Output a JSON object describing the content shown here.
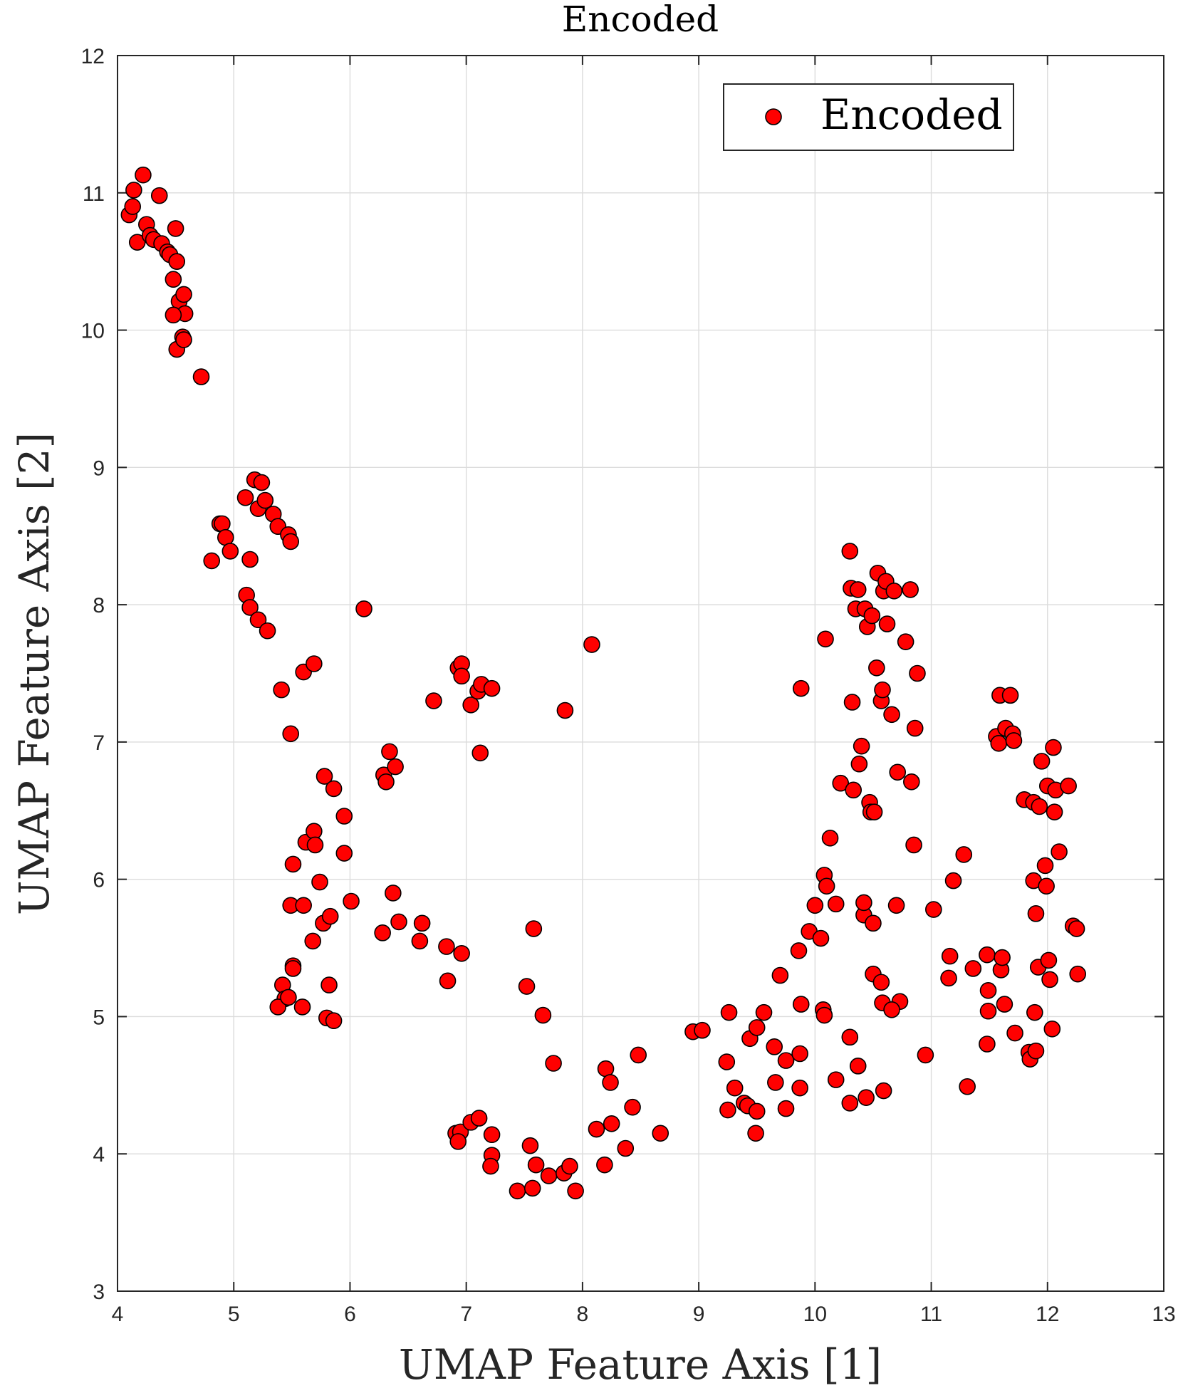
{
  "chart_data": {
    "type": "scatter",
    "title": "Encoded",
    "xlabel": "UMAP Feature Axis [1]",
    "ylabel": "UMAP Feature Axis [2]",
    "xlim": [
      4,
      13
    ],
    "ylim": [
      3,
      12
    ],
    "xticks": [
      "4",
      "5",
      "6",
      "7",
      "8",
      "9",
      "10",
      "11",
      "12",
      "13"
    ],
    "yticks": [
      "3",
      "4",
      "5",
      "6",
      "7",
      "8",
      "9",
      "10",
      "11",
      "12"
    ],
    "grid": true,
    "legend_position": "top-right",
    "series": [
      {
        "name": "Encoded",
        "color": "#ff0000",
        "points": [
          [
            4.1,
            10.84
          ],
          [
            4.13,
            10.9
          ],
          [
            4.14,
            11.02
          ],
          [
            4.17,
            10.64
          ],
          [
            4.22,
            11.13
          ],
          [
            4.25,
            10.77
          ],
          [
            4.28,
            10.69
          ],
          [
            4.31,
            10.66
          ],
          [
            4.36,
            10.98
          ],
          [
            4.38,
            10.63
          ],
          [
            4.43,
            10.57
          ],
          [
            4.45,
            10.55
          ],
          [
            4.48,
            10.37
          ],
          [
            4.5,
            10.74
          ],
          [
            4.51,
            10.5
          ],
          [
            4.53,
            10.21
          ],
          [
            4.56,
            9.95
          ],
          [
            4.57,
            10.26
          ],
          [
            4.58,
            10.12
          ],
          [
            4.48,
            10.11
          ],
          [
            4.51,
            9.86
          ],
          [
            4.57,
            9.93
          ],
          [
            4.72,
            9.66
          ],
          [
            4.81,
            8.32
          ],
          [
            4.88,
            8.59
          ],
          [
            4.9,
            8.59
          ],
          [
            4.93,
            8.49
          ],
          [
            4.97,
            8.39
          ],
          [
            5.1,
            8.78
          ],
          [
            5.14,
            8.33
          ],
          [
            5.18,
            8.91
          ],
          [
            5.21,
            8.7
          ],
          [
            5.24,
            8.89
          ],
          [
            5.27,
            8.76
          ],
          [
            5.34,
            8.66
          ],
          [
            5.38,
            8.57
          ],
          [
            5.47,
            8.51
          ],
          [
            5.49,
            8.46
          ],
          [
            5.11,
            8.07
          ],
          [
            5.14,
            7.98
          ],
          [
            5.21,
            7.89
          ],
          [
            5.29,
            7.81
          ],
          [
            5.41,
            7.38
          ],
          [
            5.6,
            7.51
          ],
          [
            5.69,
            7.57
          ],
          [
            5.49,
            7.06
          ],
          [
            6.12,
            7.97
          ],
          [
            5.78,
            6.75
          ],
          [
            5.86,
            6.66
          ],
          [
            5.95,
            6.46
          ],
          [
            5.62,
            6.27
          ],
          [
            5.69,
            6.35
          ],
          [
            5.7,
            6.25
          ],
          [
            5.51,
            6.11
          ],
          [
            5.95,
            6.19
          ],
          [
            5.74,
            5.98
          ],
          [
            5.49,
            5.81
          ],
          [
            5.6,
            5.81
          ],
          [
            5.77,
            5.68
          ],
          [
            5.83,
            5.73
          ],
          [
            6.01,
            5.84
          ],
          [
            5.68,
            5.55
          ],
          [
            5.51,
            5.37
          ],
          [
            5.51,
            5.35
          ],
          [
            5.42,
            5.23
          ],
          [
            5.44,
            5.13
          ],
          [
            5.38,
            5.07
          ],
          [
            5.47,
            5.14
          ],
          [
            5.59,
            5.07
          ],
          [
            5.82,
            5.23
          ],
          [
            5.8,
            4.99
          ],
          [
            5.86,
            4.97
          ],
          [
            6.29,
            6.76
          ],
          [
            6.31,
            6.71
          ],
          [
            6.34,
            6.93
          ],
          [
            6.39,
            6.82
          ],
          [
            6.37,
            5.9
          ],
          [
            6.42,
            5.69
          ],
          [
            6.28,
            5.61
          ],
          [
            6.6,
            5.55
          ],
          [
            6.62,
            5.68
          ],
          [
            6.72,
            7.3
          ],
          [
            6.93,
            7.54
          ],
          [
            6.96,
            7.57
          ],
          [
            6.96,
            7.48
          ],
          [
            7.04,
            7.27
          ],
          [
            7.1,
            7.37
          ],
          [
            7.13,
            7.42
          ],
          [
            7.22,
            7.39
          ],
          [
            7.12,
            6.92
          ],
          [
            6.83,
            5.51
          ],
          [
            6.96,
            5.46
          ],
          [
            6.84,
            5.26
          ],
          [
            6.91,
            4.15
          ],
          [
            6.95,
            4.16
          ],
          [
            6.93,
            4.09
          ],
          [
            7.04,
            4.23
          ],
          [
            7.11,
            4.26
          ],
          [
            7.22,
            4.14
          ],
          [
            7.22,
            3.99
          ],
          [
            7.21,
            3.91
          ],
          [
            7.44,
            3.73
          ],
          [
            7.55,
            4.06
          ],
          [
            7.57,
            3.75
          ],
          [
            7.6,
            3.92
          ],
          [
            7.71,
            3.84
          ],
          [
            7.84,
            3.86
          ],
          [
            7.89,
            3.91
          ],
          [
            7.94,
            3.73
          ],
          [
            7.52,
            5.22
          ],
          [
            7.58,
            5.64
          ],
          [
            7.66,
            5.01
          ],
          [
            7.75,
            4.66
          ],
          [
            7.85,
            7.23
          ],
          [
            8.08,
            7.71
          ],
          [
            8.12,
            4.18
          ],
          [
            8.2,
            4.62
          ],
          [
            8.24,
            4.52
          ],
          [
            8.25,
            4.22
          ],
          [
            8.19,
            3.92
          ],
          [
            8.37,
            4.04
          ],
          [
            8.43,
            4.34
          ],
          [
            8.48,
            4.72
          ],
          [
            8.67,
            4.15
          ],
          [
            8.95,
            4.89
          ],
          [
            9.03,
            4.9
          ],
          [
            9.24,
            4.67
          ],
          [
            9.26,
            5.03
          ],
          [
            9.25,
            4.32
          ],
          [
            9.31,
            4.48
          ],
          [
            9.39,
            4.37
          ],
          [
            9.42,
            4.35
          ],
          [
            9.44,
            4.84
          ],
          [
            9.5,
            4.92
          ],
          [
            9.5,
            4.31
          ],
          [
            9.49,
            4.15
          ],
          [
            9.56,
            5.03
          ],
          [
            9.65,
            4.78
          ],
          [
            9.66,
            4.52
          ],
          [
            9.7,
            5.3
          ],
          [
            9.75,
            4.68
          ],
          [
            9.75,
            4.33
          ],
          [
            9.86,
            5.48
          ],
          [
            9.88,
            5.09
          ],
          [
            9.87,
            4.73
          ],
          [
            9.87,
            4.48
          ],
          [
            9.88,
            7.39
          ],
          [
            9.95,
            5.62
          ],
          [
            10.0,
            5.81
          ],
          [
            10.05,
            5.57
          ],
          [
            10.07,
            5.05
          ],
          [
            10.08,
            5.01
          ],
          [
            10.08,
            6.03
          ],
          [
            10.1,
            5.95
          ],
          [
            10.13,
            6.3
          ],
          [
            10.09,
            7.75
          ],
          [
            10.18,
            5.82
          ],
          [
            10.18,
            4.54
          ],
          [
            10.22,
            6.7
          ],
          [
            10.3,
            8.39
          ],
          [
            10.31,
            8.12
          ],
          [
            10.32,
            7.29
          ],
          [
            10.33,
            6.65
          ],
          [
            10.35,
            7.97
          ],
          [
            10.37,
            8.11
          ],
          [
            10.38,
            6.84
          ],
          [
            10.4,
            6.97
          ],
          [
            10.42,
            5.74
          ],
          [
            10.42,
            5.83
          ],
          [
            10.43,
            7.97
          ],
          [
            10.45,
            7.84
          ],
          [
            10.47,
            6.56
          ],
          [
            10.48,
            6.49
          ],
          [
            10.49,
            7.92
          ],
          [
            10.51,
            6.49
          ],
          [
            10.53,
            7.54
          ],
          [
            10.54,
            8.23
          ],
          [
            10.57,
            7.3
          ],
          [
            10.58,
            7.38
          ],
          [
            10.59,
            8.1
          ],
          [
            10.61,
            8.17
          ],
          [
            10.62,
            7.86
          ],
          [
            10.66,
            7.2
          ],
          [
            10.68,
            8.1
          ],
          [
            10.7,
            5.81
          ],
          [
            10.71,
            6.78
          ],
          [
            10.73,
            5.11
          ],
          [
            10.78,
            7.73
          ],
          [
            10.82,
            8.11
          ],
          [
            10.83,
            6.71
          ],
          [
            10.85,
            6.25
          ],
          [
            10.86,
            7.1
          ],
          [
            10.88,
            7.5
          ],
          [
            10.3,
            4.85
          ],
          [
            10.37,
            4.64
          ],
          [
            10.3,
            4.37
          ],
          [
            10.44,
            4.41
          ],
          [
            10.5,
            5.68
          ],
          [
            10.5,
            5.31
          ],
          [
            10.57,
            5.25
          ],
          [
            10.58,
            5.1
          ],
          [
            10.66,
            5.05
          ],
          [
            10.59,
            4.46
          ],
          [
            10.95,
            4.72
          ],
          [
            11.02,
            5.78
          ],
          [
            11.15,
            5.28
          ],
          [
            11.16,
            5.44
          ],
          [
            11.19,
            5.99
          ],
          [
            11.28,
            6.18
          ],
          [
            11.31,
            4.49
          ],
          [
            11.36,
            5.35
          ],
          [
            11.48,
            5.45
          ],
          [
            11.49,
            5.19
          ],
          [
            11.49,
            5.04
          ],
          [
            11.48,
            4.8
          ],
          [
            11.56,
            7.04
          ],
          [
            11.58,
            6.99
          ],
          [
            11.59,
            7.34
          ],
          [
            11.6,
            5.34
          ],
          [
            11.61,
            5.43
          ],
          [
            11.63,
            5.09
          ],
          [
            11.64,
            7.1
          ],
          [
            11.68,
            7.34
          ],
          [
            11.7,
            7.06
          ],
          [
            11.71,
            7.01
          ],
          [
            11.72,
            4.88
          ],
          [
            11.8,
            6.58
          ],
          [
            11.84,
            4.74
          ],
          [
            11.85,
            4.69
          ],
          [
            11.88,
            5.99
          ],
          [
            11.88,
            6.56
          ],
          [
            11.89,
            5.03
          ],
          [
            11.9,
            4.75
          ],
          [
            11.9,
            5.75
          ],
          [
            11.92,
            5.36
          ],
          [
            11.93,
            6.53
          ],
          [
            11.95,
            6.86
          ],
          [
            11.98,
            6.1
          ],
          [
            11.99,
            5.95
          ],
          [
            12.0,
            6.68
          ],
          [
            12.01,
            5.41
          ],
          [
            12.02,
            5.27
          ],
          [
            12.04,
            4.91
          ],
          [
            12.05,
            6.96
          ],
          [
            12.06,
            6.49
          ],
          [
            12.07,
            6.65
          ],
          [
            12.1,
            6.2
          ],
          [
            12.18,
            6.68
          ],
          [
            12.22,
            5.66
          ],
          [
            12.25,
            5.64
          ],
          [
            12.26,
            5.31
          ]
        ]
      }
    ]
  }
}
